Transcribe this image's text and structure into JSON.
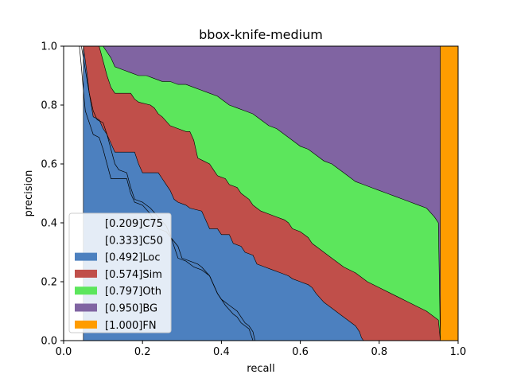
{
  "chart_data": {
    "type": "area",
    "title": "bbox-knife-medium",
    "xlabel": "recall",
    "ylabel": "precision",
    "xlim": [
      0,
      1
    ],
    "ylim": [
      0,
      1
    ],
    "xticks": [
      "0.0",
      "0.2",
      "0.4",
      "0.6",
      "0.8",
      "1.0"
    ],
    "yticks": [
      "0.0",
      "0.2",
      "0.4",
      "0.6",
      "0.8",
      "1.0"
    ],
    "grid": false,
    "legend_position": "lower-left",
    "series": [
      {
        "name": "[0.209]C75",
        "kind": "line",
        "color": "#000000",
        "points": [
          [
            0.04,
            1.0
          ],
          [
            0.045,
            0.93
          ],
          [
            0.05,
            0.85
          ],
          [
            0.055,
            0.78
          ],
          [
            0.065,
            0.74
          ],
          [
            0.075,
            0.7
          ],
          [
            0.09,
            0.69
          ],
          [
            0.1,
            0.65
          ],
          [
            0.11,
            0.6
          ],
          [
            0.12,
            0.55
          ],
          [
            0.14,
            0.55
          ],
          [
            0.16,
            0.55
          ],
          [
            0.17,
            0.5
          ],
          [
            0.18,
            0.47
          ],
          [
            0.2,
            0.46
          ],
          [
            0.22,
            0.43
          ],
          [
            0.24,
            0.38
          ],
          [
            0.26,
            0.37
          ],
          [
            0.29,
            0.32
          ],
          [
            0.3,
            0.28
          ],
          [
            0.32,
            0.27
          ],
          [
            0.34,
            0.26
          ],
          [
            0.35,
            0.25
          ],
          [
            0.37,
            0.22
          ],
          [
            0.38,
            0.19
          ],
          [
            0.39,
            0.16
          ],
          [
            0.4,
            0.14
          ],
          [
            0.41,
            0.12
          ],
          [
            0.43,
            0.09
          ],
          [
            0.44,
            0.08
          ],
          [
            0.45,
            0.06
          ],
          [
            0.46,
            0.05
          ],
          [
            0.47,
            0.04
          ],
          [
            0.475,
            0.02
          ],
          [
            0.48,
            0.0
          ]
        ]
      },
      {
        "name": "[0.333]C50",
        "kind": "line",
        "color": "#000000",
        "points": [
          [
            0.045,
            1.0
          ],
          [
            0.055,
            0.92
          ],
          [
            0.065,
            0.84
          ],
          [
            0.075,
            0.78
          ],
          [
            0.085,
            0.75
          ],
          [
            0.1,
            0.74
          ],
          [
            0.11,
            0.7
          ],
          [
            0.12,
            0.65
          ],
          [
            0.13,
            0.6
          ],
          [
            0.14,
            0.58
          ],
          [
            0.16,
            0.57
          ],
          [
            0.17,
            0.52
          ],
          [
            0.18,
            0.48
          ],
          [
            0.2,
            0.47
          ],
          [
            0.22,
            0.45
          ],
          [
            0.24,
            0.42
          ],
          [
            0.26,
            0.39
          ],
          [
            0.27,
            0.36
          ],
          [
            0.28,
            0.32
          ],
          [
            0.29,
            0.28
          ],
          [
            0.31,
            0.27
          ],
          [
            0.33,
            0.25
          ],
          [
            0.35,
            0.24
          ],
          [
            0.37,
            0.22
          ],
          [
            0.38,
            0.19
          ],
          [
            0.39,
            0.16
          ],
          [
            0.4,
            0.14
          ],
          [
            0.42,
            0.12
          ],
          [
            0.44,
            0.1
          ],
          [
            0.45,
            0.08
          ],
          [
            0.46,
            0.06
          ],
          [
            0.47,
            0.05
          ],
          [
            0.48,
            0.03
          ],
          [
            0.485,
            0.0
          ]
        ]
      },
      {
        "name": "[0.492]Loc",
        "kind": "area",
        "color": "#4c80bf",
        "points": [
          [
            0.05,
            1.0
          ],
          [
            0.06,
            0.9
          ],
          [
            0.065,
            0.84
          ],
          [
            0.07,
            0.8
          ],
          [
            0.075,
            0.76
          ],
          [
            0.09,
            0.75
          ],
          [
            0.1,
            0.72
          ],
          [
            0.11,
            0.7
          ],
          [
            0.12,
            0.67
          ],
          [
            0.13,
            0.64
          ],
          [
            0.16,
            0.64
          ],
          [
            0.18,
            0.64
          ],
          [
            0.19,
            0.6
          ],
          [
            0.2,
            0.57
          ],
          [
            0.24,
            0.57
          ],
          [
            0.25,
            0.55
          ],
          [
            0.26,
            0.53
          ],
          [
            0.27,
            0.51
          ],
          [
            0.28,
            0.48
          ],
          [
            0.29,
            0.47
          ],
          [
            0.31,
            0.46
          ],
          [
            0.32,
            0.45
          ],
          [
            0.35,
            0.44
          ],
          [
            0.36,
            0.41
          ],
          [
            0.37,
            0.38
          ],
          [
            0.39,
            0.38
          ],
          [
            0.4,
            0.36
          ],
          [
            0.42,
            0.36
          ],
          [
            0.43,
            0.33
          ],
          [
            0.45,
            0.32
          ],
          [
            0.46,
            0.3
          ],
          [
            0.48,
            0.29
          ],
          [
            0.49,
            0.26
          ],
          [
            0.51,
            0.25
          ],
          [
            0.53,
            0.24
          ],
          [
            0.55,
            0.23
          ],
          [
            0.57,
            0.22
          ],
          [
            0.58,
            0.21
          ],
          [
            0.6,
            0.2
          ],
          [
            0.62,
            0.19
          ],
          [
            0.63,
            0.18
          ],
          [
            0.64,
            0.16
          ],
          [
            0.66,
            0.13
          ],
          [
            0.68,
            0.11
          ],
          [
            0.7,
            0.09
          ],
          [
            0.72,
            0.07
          ],
          [
            0.74,
            0.05
          ],
          [
            0.75,
            0.03
          ],
          [
            0.755,
            0.01
          ],
          [
            0.76,
            0.0
          ]
        ]
      },
      {
        "name": "[0.574]Sim",
        "kind": "area",
        "color": "#c04f4a",
        "points": [
          [
            0.05,
            1.0
          ],
          [
            0.09,
            1.0
          ],
          [
            0.1,
            0.95
          ],
          [
            0.11,
            0.9
          ],
          [
            0.12,
            0.86
          ],
          [
            0.13,
            0.84
          ],
          [
            0.16,
            0.84
          ],
          [
            0.17,
            0.84
          ],
          [
            0.18,
            0.82
          ],
          [
            0.19,
            0.81
          ],
          [
            0.22,
            0.8
          ],
          [
            0.23,
            0.79
          ],
          [
            0.24,
            0.77
          ],
          [
            0.25,
            0.76
          ],
          [
            0.27,
            0.73
          ],
          [
            0.29,
            0.72
          ],
          [
            0.31,
            0.71
          ],
          [
            0.32,
            0.71
          ],
          [
            0.33,
            0.68
          ],
          [
            0.34,
            0.62
          ],
          [
            0.37,
            0.6
          ],
          [
            0.38,
            0.58
          ],
          [
            0.39,
            0.56
          ],
          [
            0.41,
            0.55
          ],
          [
            0.42,
            0.53
          ],
          [
            0.44,
            0.52
          ],
          [
            0.45,
            0.5
          ],
          [
            0.47,
            0.48
          ],
          [
            0.48,
            0.46
          ],
          [
            0.49,
            0.45
          ],
          [
            0.5,
            0.44
          ],
          [
            0.52,
            0.43
          ],
          [
            0.54,
            0.42
          ],
          [
            0.56,
            0.41
          ],
          [
            0.57,
            0.4
          ],
          [
            0.58,
            0.38
          ],
          [
            0.6,
            0.37
          ],
          [
            0.62,
            0.35
          ],
          [
            0.63,
            0.33
          ],
          [
            0.65,
            0.31
          ],
          [
            0.67,
            0.29
          ],
          [
            0.69,
            0.27
          ],
          [
            0.71,
            0.25
          ],
          [
            0.74,
            0.23
          ],
          [
            0.77,
            0.2
          ],
          [
            0.8,
            0.18
          ],
          [
            0.83,
            0.16
          ],
          [
            0.86,
            0.14
          ],
          [
            0.89,
            0.12
          ],
          [
            0.92,
            0.1
          ],
          [
            0.95,
            0.07
          ],
          [
            0.955,
            0.0
          ]
        ]
      },
      {
        "name": "[0.797]Oth",
        "kind": "area",
        "color": "#5ce65c",
        "points": [
          [
            0.05,
            1.0
          ],
          [
            0.1,
            1.0
          ],
          [
            0.12,
            0.96
          ],
          [
            0.13,
            0.93
          ],
          [
            0.15,
            0.92
          ],
          [
            0.17,
            0.91
          ],
          [
            0.19,
            0.9
          ],
          [
            0.21,
            0.9
          ],
          [
            0.23,
            0.89
          ],
          [
            0.25,
            0.88
          ],
          [
            0.27,
            0.88
          ],
          [
            0.29,
            0.87
          ],
          [
            0.31,
            0.87
          ],
          [
            0.33,
            0.86
          ],
          [
            0.35,
            0.85
          ],
          [
            0.37,
            0.84
          ],
          [
            0.39,
            0.83
          ],
          [
            0.4,
            0.82
          ],
          [
            0.42,
            0.8
          ],
          [
            0.44,
            0.79
          ],
          [
            0.46,
            0.78
          ],
          [
            0.48,
            0.77
          ],
          [
            0.5,
            0.75
          ],
          [
            0.52,
            0.73
          ],
          [
            0.54,
            0.72
          ],
          [
            0.56,
            0.7
          ],
          [
            0.58,
            0.68
          ],
          [
            0.6,
            0.66
          ],
          [
            0.62,
            0.65
          ],
          [
            0.64,
            0.63
          ],
          [
            0.66,
            0.61
          ],
          [
            0.68,
            0.6
          ],
          [
            0.7,
            0.58
          ],
          [
            0.72,
            0.56
          ],
          [
            0.74,
            0.54
          ],
          [
            0.76,
            0.53
          ],
          [
            0.78,
            0.52
          ],
          [
            0.8,
            0.51
          ],
          [
            0.82,
            0.5
          ],
          [
            0.84,
            0.49
          ],
          [
            0.86,
            0.48
          ],
          [
            0.88,
            0.47
          ],
          [
            0.9,
            0.46
          ],
          [
            0.92,
            0.45
          ],
          [
            0.94,
            0.42
          ],
          [
            0.95,
            0.4
          ],
          [
            0.955,
            0.0
          ]
        ]
      },
      {
        "name": "[0.950]BG",
        "kind": "area",
        "color": "#8064a2",
        "points": [
          [
            0.05,
            1.0
          ],
          [
            0.955,
            1.0
          ],
          [
            0.955,
            0.0
          ]
        ]
      },
      {
        "name": "[1.000]FN",
        "kind": "area",
        "color": "#ff9c00",
        "points": [
          [
            0.955,
            1.0
          ],
          [
            1.0,
            1.0
          ],
          [
            1.0,
            0.0
          ],
          [
            0.955,
            0.0
          ]
        ]
      }
    ]
  }
}
